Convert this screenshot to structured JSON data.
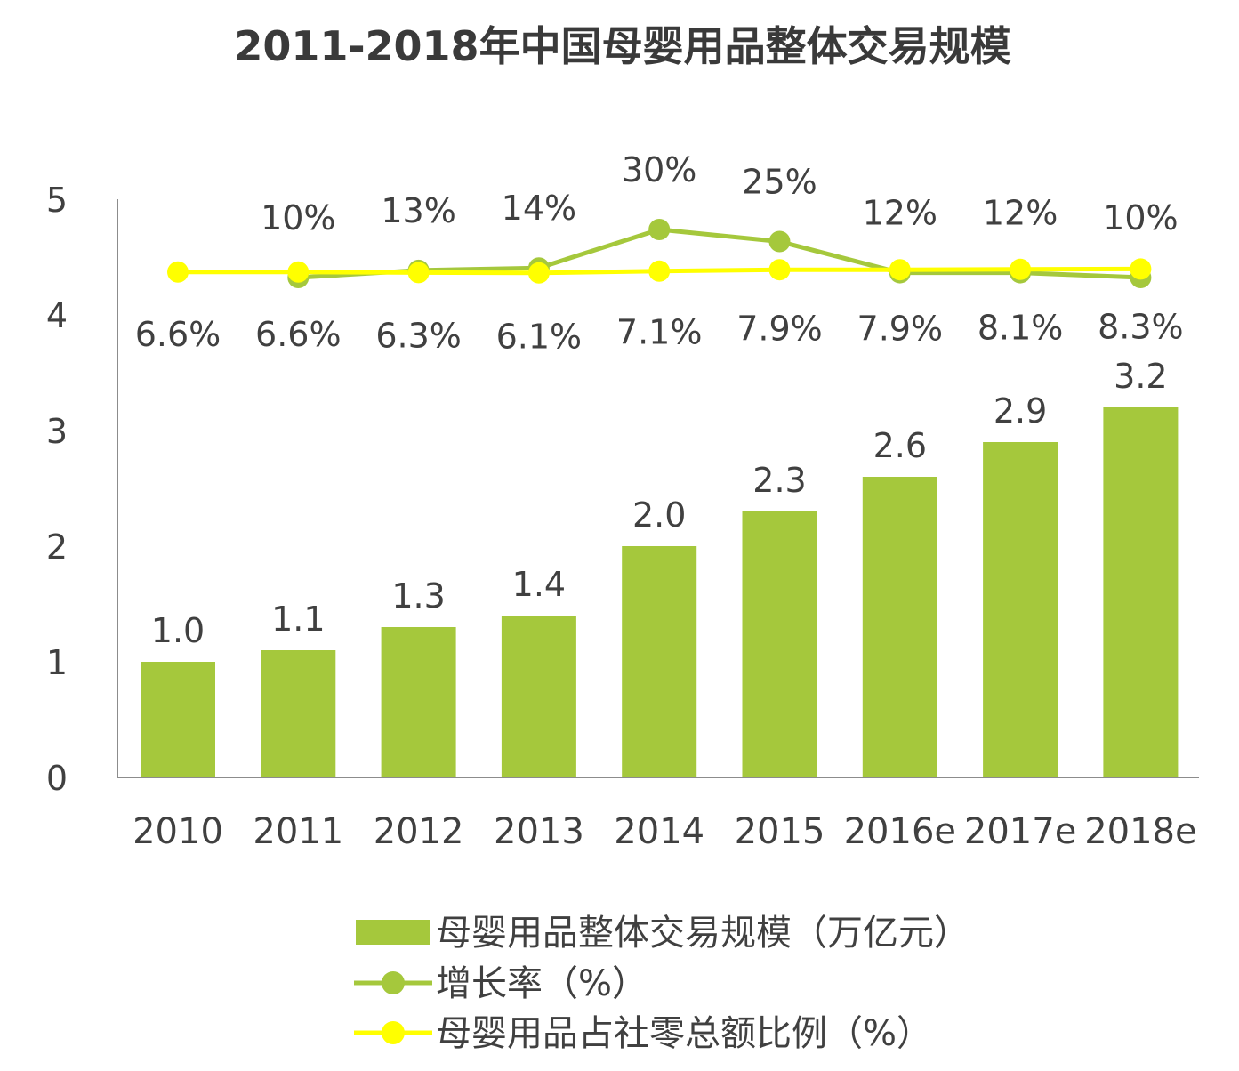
{
  "chart_data": {
    "type": "bar",
    "title": "2011-2018年中国母婴用品整体交易规模",
    "categories": [
      "2010",
      "2011",
      "2012",
      "2013",
      "2014",
      "2015",
      "2016e",
      "2017e",
      "2018e"
    ],
    "ylim": [
      0,
      5
    ],
    "yticks": [
      "0",
      "1",
      "2",
      "3",
      "4",
      "5"
    ],
    "series": [
      {
        "name": "母婴用品整体交易规模（万亿元）",
        "kind": "bar",
        "color": "#a5c83c",
        "values": [
          1.0,
          1.1,
          1.3,
          1.4,
          2.0,
          2.3,
          2.6,
          2.9,
          3.2
        ],
        "labels": [
          "1.0",
          "1.1",
          "1.3",
          "1.4",
          "2.0",
          "2.3",
          "2.6",
          "2.9",
          "3.2"
        ]
      },
      {
        "name": "增长率（%）",
        "kind": "line",
        "color": "#a5c83c",
        "values": [
          null,
          10,
          13,
          14,
          30,
          25,
          12,
          12,
          10
        ],
        "labels": [
          "",
          "10%",
          "13%",
          "14%",
          "30%",
          "25%",
          "12%",
          "12%",
          "10%"
        ]
      },
      {
        "name": "母婴用品占社零总额比例（%）",
        "kind": "line",
        "color": "#ffff00",
        "values": [
          6.6,
          6.6,
          6.3,
          6.1,
          7.1,
          7.9,
          7.9,
          8.1,
          8.3
        ],
        "labels": [
          "6.6%",
          "6.6%",
          "6.3%",
          "6.1%",
          "7.1%",
          "7.9%",
          "7.9%",
          "8.1%",
          "8.3%"
        ]
      }
    ],
    "legend": [
      {
        "label": "母婴用品整体交易规模（万亿元）",
        "marker": "bar",
        "color": "#a5c83c"
      },
      {
        "label": "增长率（%）",
        "marker": "line-dot",
        "color": "#a5c83c"
      },
      {
        "label": "母婴用品占社零总额比例（%）",
        "marker": "line-dot",
        "color": "#ffff00"
      }
    ],
    "legend_position": "bottom-center"
  }
}
